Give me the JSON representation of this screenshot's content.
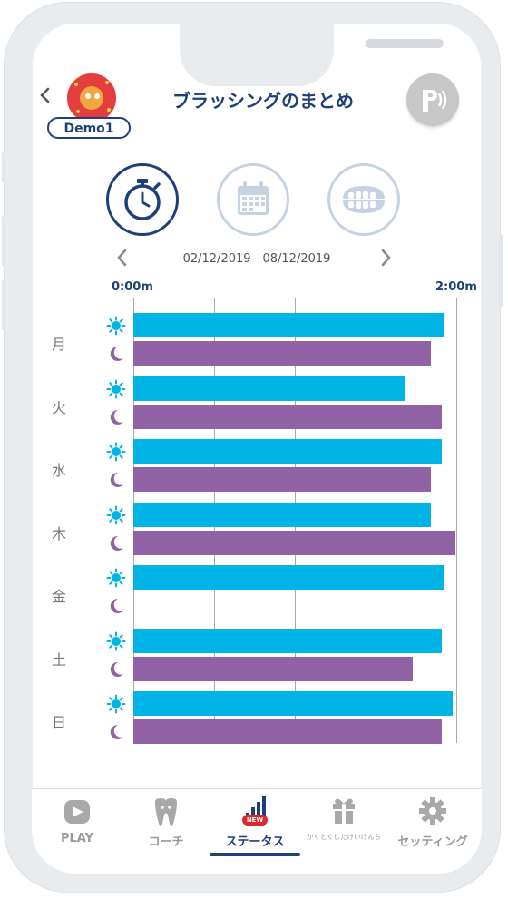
{
  "header": {
    "title": "ブラッシングのまとめ",
    "user_name": "Demo1",
    "back_icon": "chevron-left-icon",
    "bluetooth_icon": "toothbrush-bluetooth-icon"
  },
  "modes": [
    {
      "name": "timer",
      "icon": "stopwatch-icon",
      "active": true
    },
    {
      "name": "calendar",
      "icon": "calendar-icon",
      "active": false
    },
    {
      "name": "teeth",
      "icon": "teeth-icon",
      "active": false
    }
  ],
  "date_range": {
    "text": "02/12/2019 - 08/12/2019",
    "prev_icon": "chevron-left-icon",
    "next_icon": "chevron-right-icon"
  },
  "colors": {
    "morning": "#00b4e6",
    "evening": "#9163a6",
    "brand": "#1f3f7a",
    "new_badge": "#e0262b"
  },
  "chart_data": {
    "type": "bar",
    "orientation": "horizontal",
    "x_tick_labels": [
      "0:00m",
      "2:00m"
    ],
    "xlim_seconds": [
      0,
      120
    ],
    "grid": true,
    "categories": [
      "月",
      "火",
      "水",
      "木",
      "金",
      "土",
      "日"
    ],
    "series": [
      {
        "icon": "sun-icon",
        "values_seconds": [
          116,
          101,
          115,
          111,
          116,
          115,
          119
        ]
      },
      {
        "icon": "moon-icon",
        "values_seconds": [
          111,
          115,
          111,
          120,
          null,
          104,
          115
        ]
      }
    ]
  },
  "tabbar": {
    "items": [
      {
        "label": "PLAY",
        "icon": "play-icon",
        "active": false
      },
      {
        "label": "コーチ",
        "icon": "tooth-icon",
        "active": false
      },
      {
        "label": "ステータス",
        "icon": "stats-icon",
        "active": true,
        "badge": "NEW"
      },
      {
        "label": "かくとくしたけいけんち",
        "icon": "gift-icon",
        "active": false
      },
      {
        "label": "セッティング",
        "icon": "gear-icon",
        "active": false
      }
    ]
  }
}
